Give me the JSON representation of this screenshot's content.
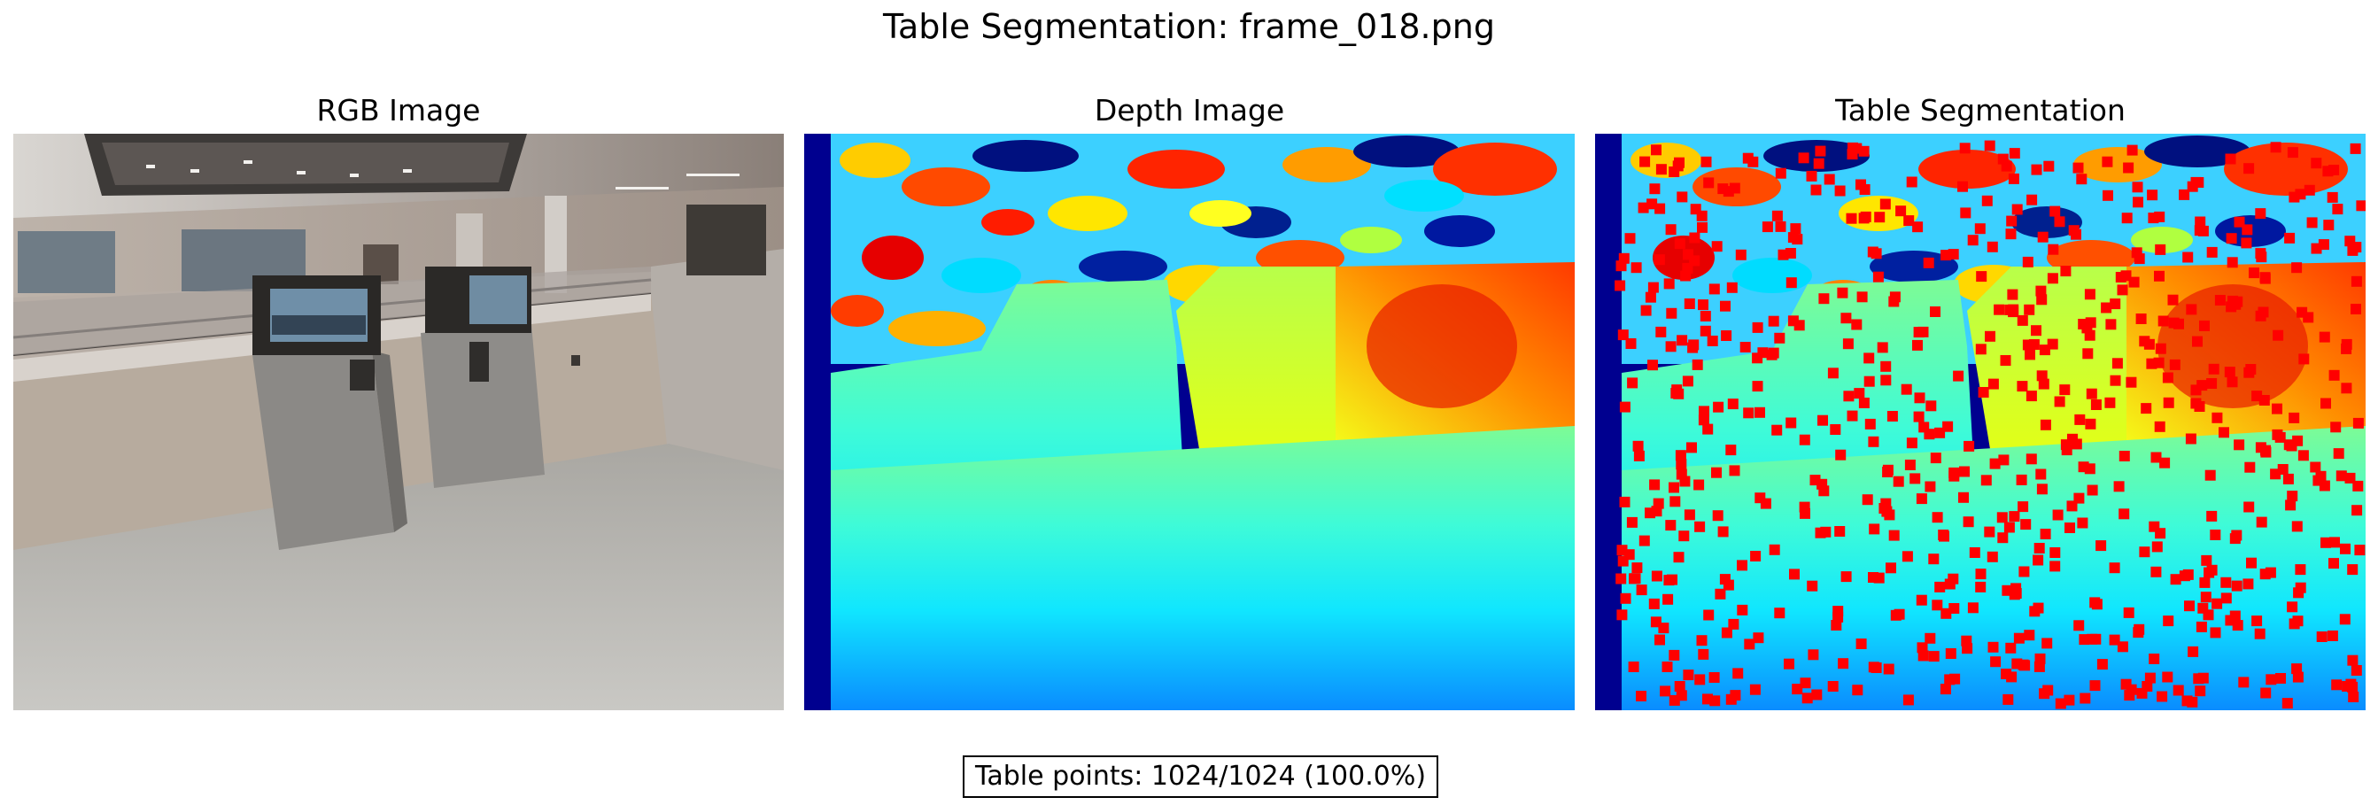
{
  "figure": {
    "suptitle": "Table Segmentation: frame_018.png"
  },
  "panels": [
    {
      "title": "RGB Image"
    },
    {
      "title": "Depth Image"
    },
    {
      "title": "Table Segmentation"
    }
  ],
  "stats": {
    "text": "Table points: 1024/1024 (100.0%)"
  },
  "colors": {
    "overlay_points": "#ff0000",
    "depth_colormap": "jet"
  }
}
